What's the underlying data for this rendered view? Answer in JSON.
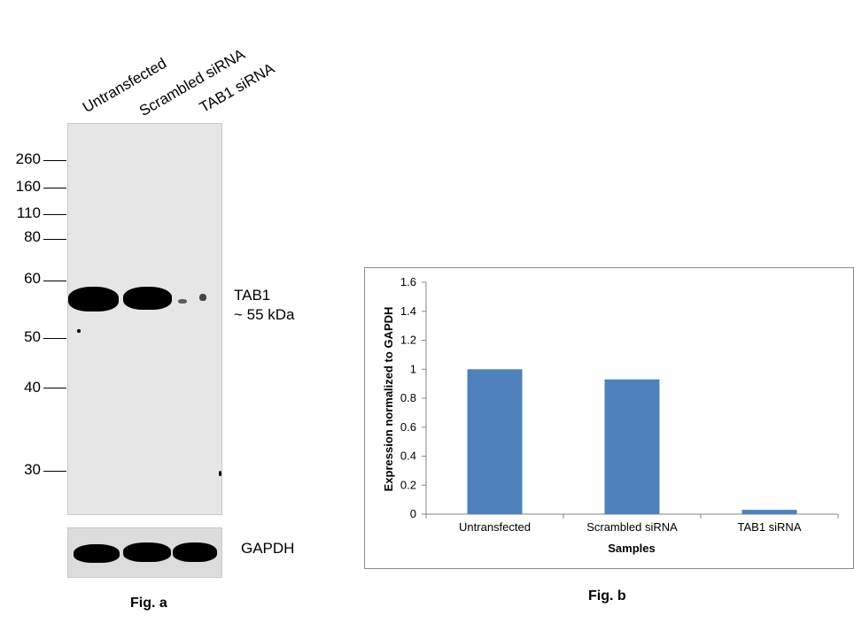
{
  "fig_a": {
    "lanes": [
      "Untransfected",
      "Scrambled siRNA",
      "TAB1 siRNA"
    ],
    "mw_markers": [
      "260",
      "160",
      "110",
      "80",
      "60",
      "50",
      "40",
      "30"
    ],
    "band_label_line1": "TAB1",
    "band_label_line2": "~ 55 kDa",
    "loading_control_label": "GAPDH",
    "caption": "Fig. a"
  },
  "fig_b": {
    "caption": "Fig. b"
  },
  "chart_data": {
    "type": "bar",
    "categories": [
      "Untransfected",
      "Scrambled siRNA",
      "TAB1 siRNA"
    ],
    "values": [
      1.0,
      0.93,
      0.03
    ],
    "title": "",
    "xlabel": "Samples",
    "ylabel": "Expression normalized to GAPDH",
    "ylim": [
      0,
      1.6
    ],
    "yticks": [
      "0",
      "0.2",
      "0.4",
      "0.6",
      "0.8",
      "1",
      "1.2",
      "1.4",
      "1.6"
    ],
    "bar_color": "#4f81bd",
    "grid": false,
    "legend": "none"
  }
}
